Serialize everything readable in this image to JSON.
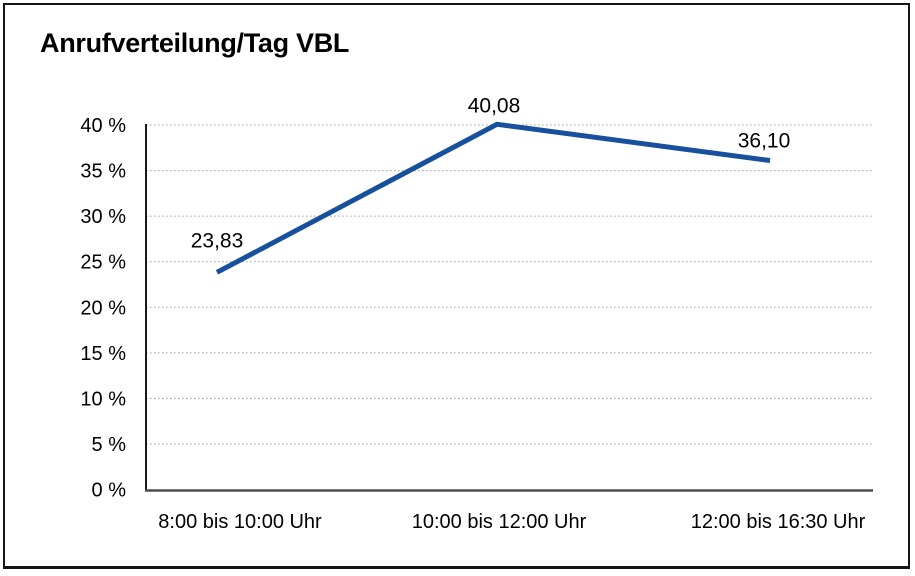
{
  "chart_data": {
    "type": "line",
    "title": "Anrufverteilung/Tag VBL",
    "categories": [
      "8:00 bis 10:00 Uhr",
      "10:00 bis 12:00 Uhr",
      "12:00 bis 16:30 Uhr"
    ],
    "values": [
      23.83,
      40.08,
      36.1
    ],
    "data_labels": [
      "23,83",
      "40,08",
      "36,10"
    ],
    "ytick_labels": [
      "0 %",
      "5 %",
      "10 %",
      "15 %",
      "20 %",
      "25 %",
      "30 %",
      "35 %",
      "40 %"
    ],
    "ytick_step": 5,
    "ylim": [
      0,
      40
    ],
    "xlabel": "",
    "ylabel": "",
    "grid": "horizontal dotted",
    "legend": "none",
    "line_color": "#17509C",
    "title_color": "#000000"
  }
}
